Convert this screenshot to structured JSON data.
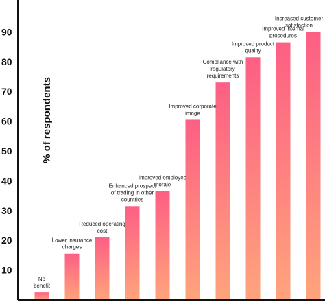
{
  "chart_data": {
    "type": "bar",
    "ylabel": "% of respondents",
    "yticks": [
      10,
      20,
      30,
      40,
      50,
      60,
      70,
      80,
      90
    ],
    "ylim": [
      0,
      100
    ],
    "grid": false,
    "categories": [
      "No benefit",
      "Lower insurance charges",
      "Reduced operating cost",
      "Enhanced prospect of trading in other countries",
      "Improved employee morale",
      "Improved corporate image",
      "Compliance with regulatory requirements",
      "Improved product quality",
      "Improved internal procedures",
      "Increased customer satisfaction"
    ],
    "values": [
      2.5,
      15.5,
      21,
      31.5,
      36.5,
      60.5,
      73,
      81.5,
      86.5,
      90
    ],
    "colors": {
      "bar_top": "#fd5f84",
      "bar_bottom": "#fea47c",
      "axis": "#111111"
    }
  }
}
